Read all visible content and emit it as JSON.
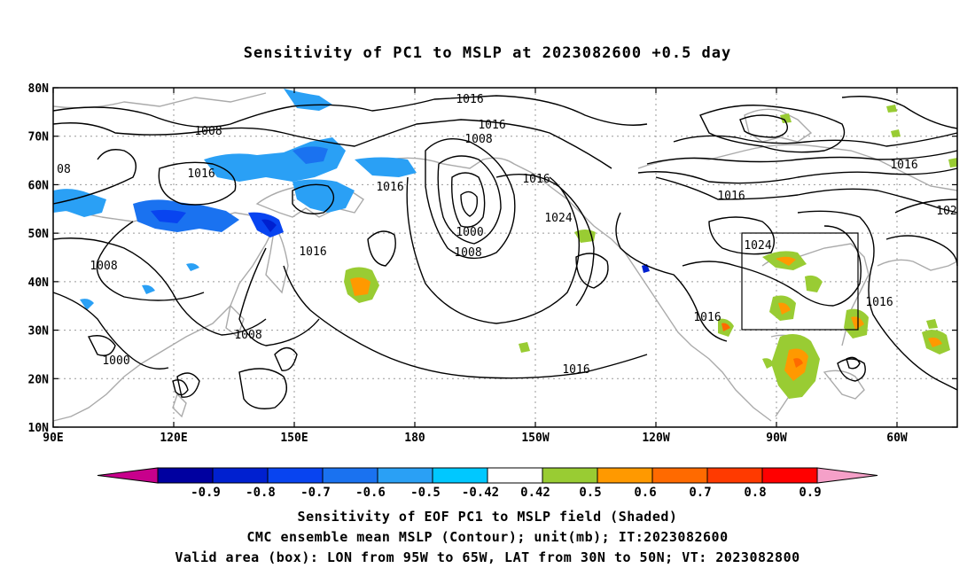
{
  "title": "Sensitivity of PC1 to MSLP at 2023082600 +0.5 day",
  "lat_labels": [
    "80N",
    "70N",
    "60N",
    "50N",
    "40N",
    "30N",
    "20N",
    "10N"
  ],
  "lon_labels": [
    "90E",
    "120E",
    "150E",
    "180",
    "150W",
    "120W",
    "90W",
    "60W"
  ],
  "contour_labels": [
    "1016",
    "1016",
    "1008",
    "1016",
    "1016",
    "1024",
    "1000",
    "1008",
    "1008",
    "1016",
    "1016",
    "1008",
    "1000",
    "1008",
    "1016",
    "1016",
    "1024",
    "1016",
    "1016",
    "1016",
    "08",
    "102"
  ],
  "colorbar": {
    "tick_labels": [
      "-0.9",
      "-0.8",
      "-0.7",
      "-0.6",
      "-0.5",
      "-0.42",
      "0.42",
      "0.5",
      "0.6",
      "0.7",
      "0.8",
      "0.9"
    ],
    "colors": [
      "#c8008c",
      "#0000a0",
      "#0020d0",
      "#0844f0",
      "#1a72f0",
      "#2aa0f5",
      "#00c8ff",
      "#ffffff",
      "#99cc33",
      "#ff9900",
      "#ff6a00",
      "#ff3a00",
      "#ff0000",
      "#f5a0c8"
    ]
  },
  "captions": {
    "line1": "Sensitivity of EOF PC1 to MSLP field (Shaded)",
    "line2": "CMC ensemble mean MSLP (Contour); unit(mb); IT:2023082600",
    "line3": "Valid area (box): LON from 95W to 65W, LAT from 30N to 50N; VT: 2023082800"
  }
}
